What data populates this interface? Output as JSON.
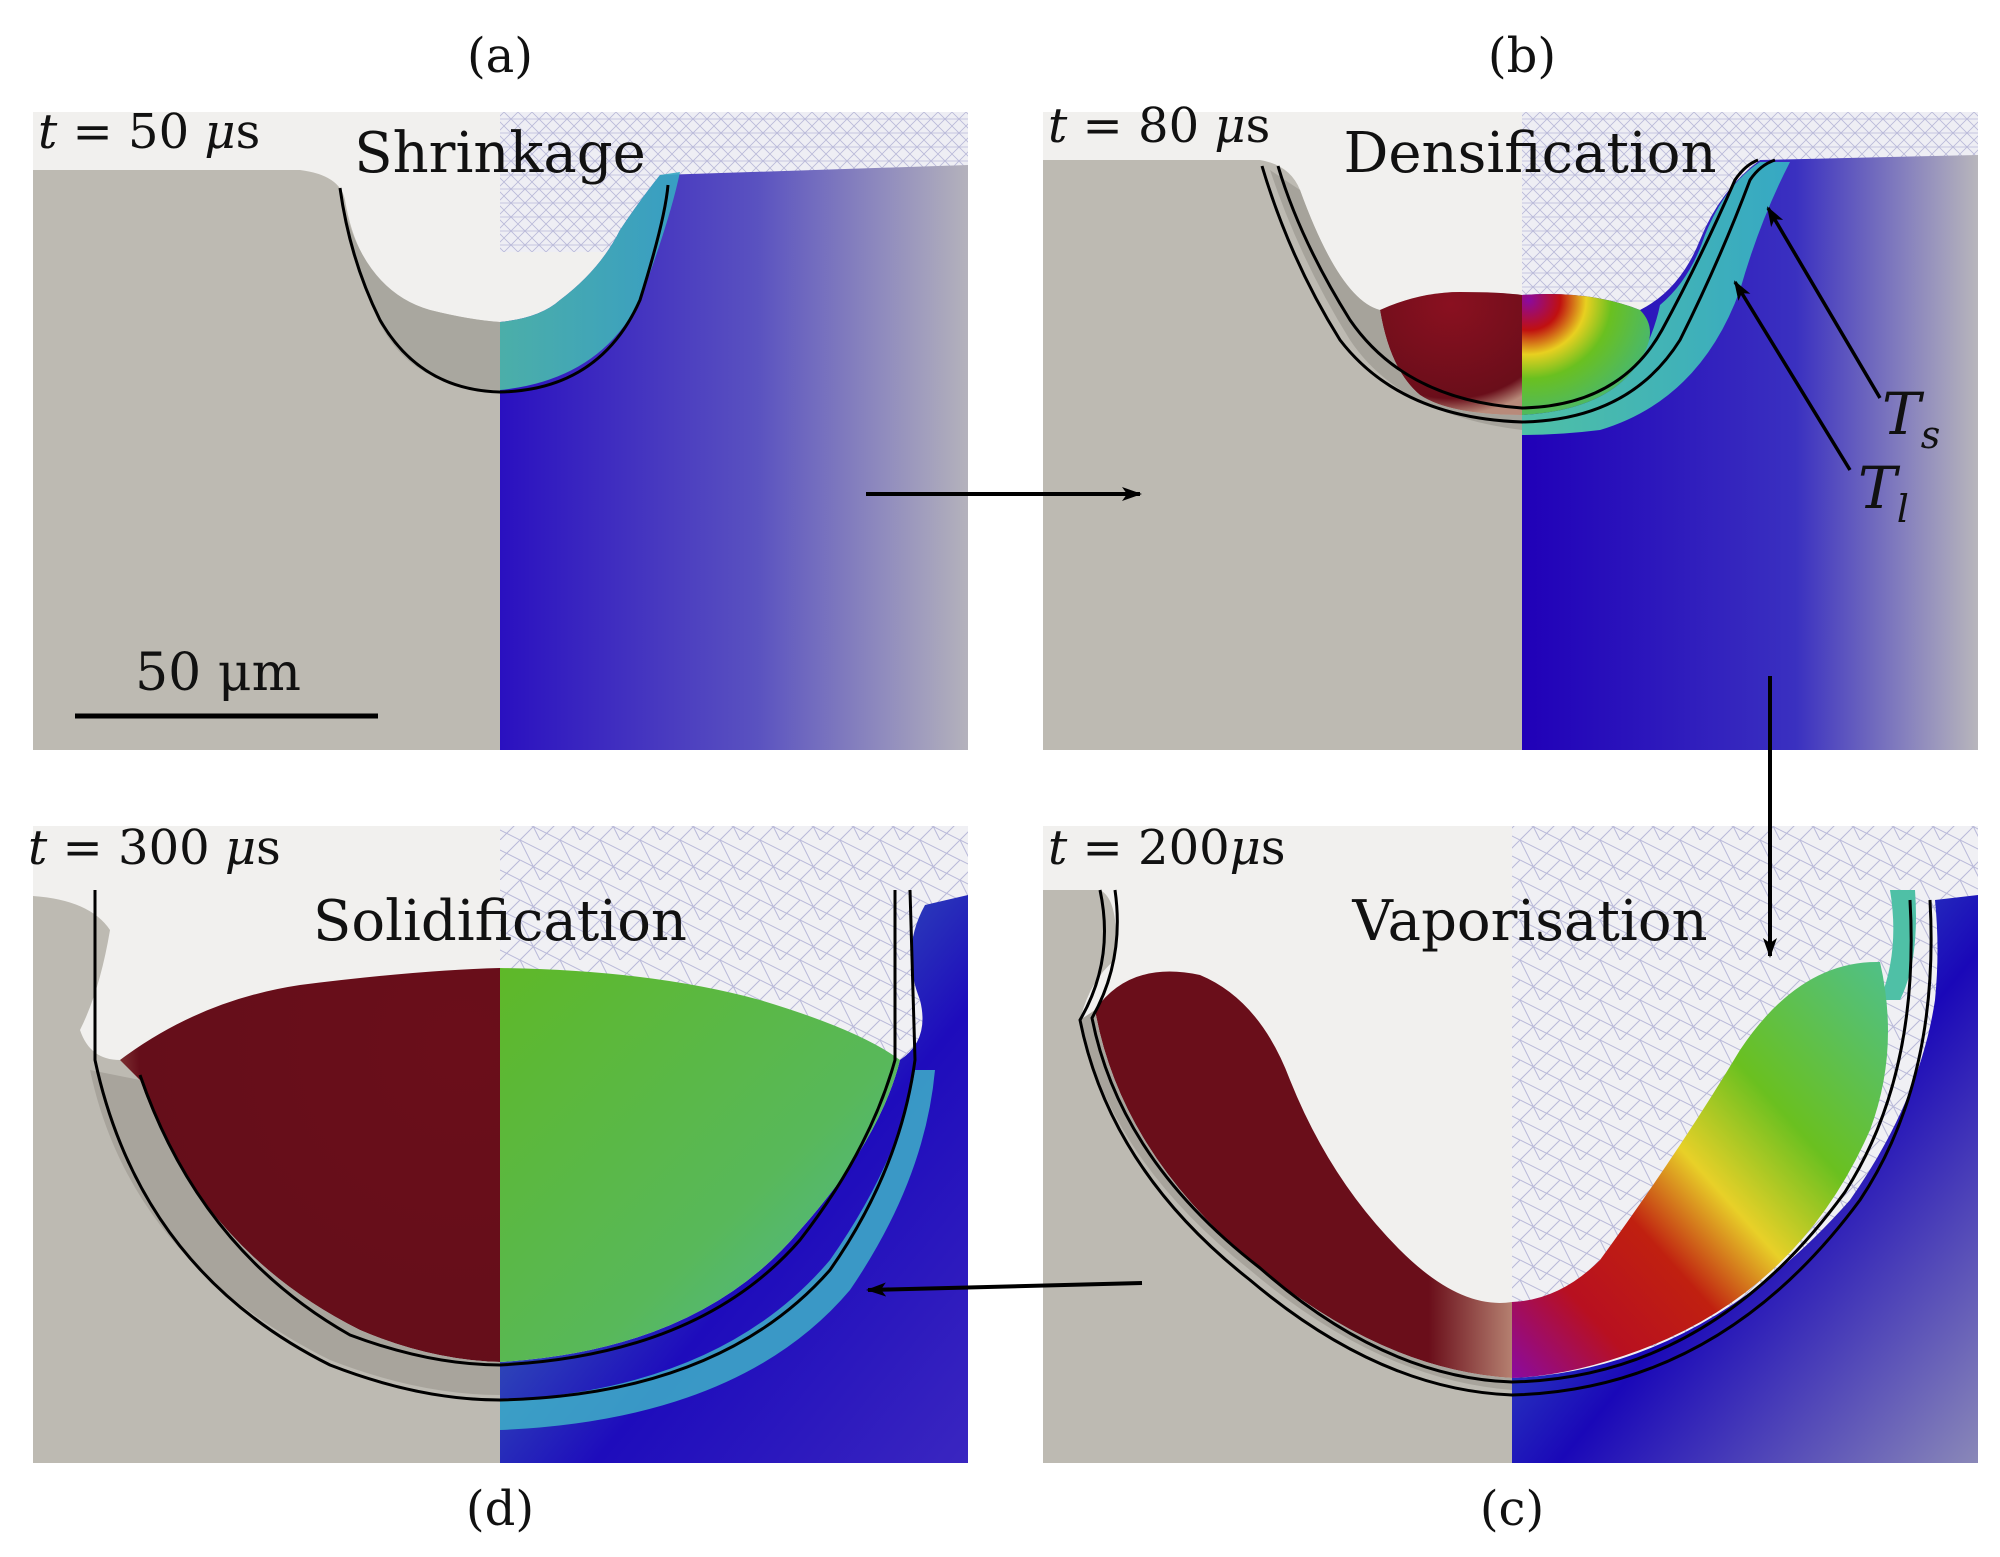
{
  "panels": {
    "a": {
      "letter": "(a)",
      "time_var": "t",
      "time_eq": " = 50 ",
      "time_mu": "μ",
      "time_unit": "s",
      "phase": "Shrinkage"
    },
    "b": {
      "letter": "(b)",
      "time_var": "t",
      "time_eq": " = 80 ",
      "time_mu": "μ",
      "time_unit": "s",
      "phase": "Densification",
      "ts_main": "T",
      "ts_sub": "s",
      "tl_main": "T",
      "tl_sub": "l"
    },
    "c": {
      "letter": "(c)",
      "time_var": "t",
      "time_eq": " = 200",
      "time_mu": "μ",
      "time_unit": "s",
      "phase": "Vaporisation"
    },
    "d": {
      "letter": "(d)",
      "time_var": "t",
      "time_eq": " = 300 ",
      "time_mu": "μ",
      "time_unit": "s",
      "phase": "Solidification"
    }
  },
  "scale_bar": {
    "label": "50 μm"
  },
  "colors": {
    "solid_grey": "#bdbab2",
    "gas": "#f1f0ee",
    "mesh": "#b8b8d8",
    "melt_dark_red": "#6a0e1a",
    "green": "#5db832",
    "teal": "#4fc0a6",
    "blue": "#1a00b0",
    "purple": "#8a0aa0"
  }
}
